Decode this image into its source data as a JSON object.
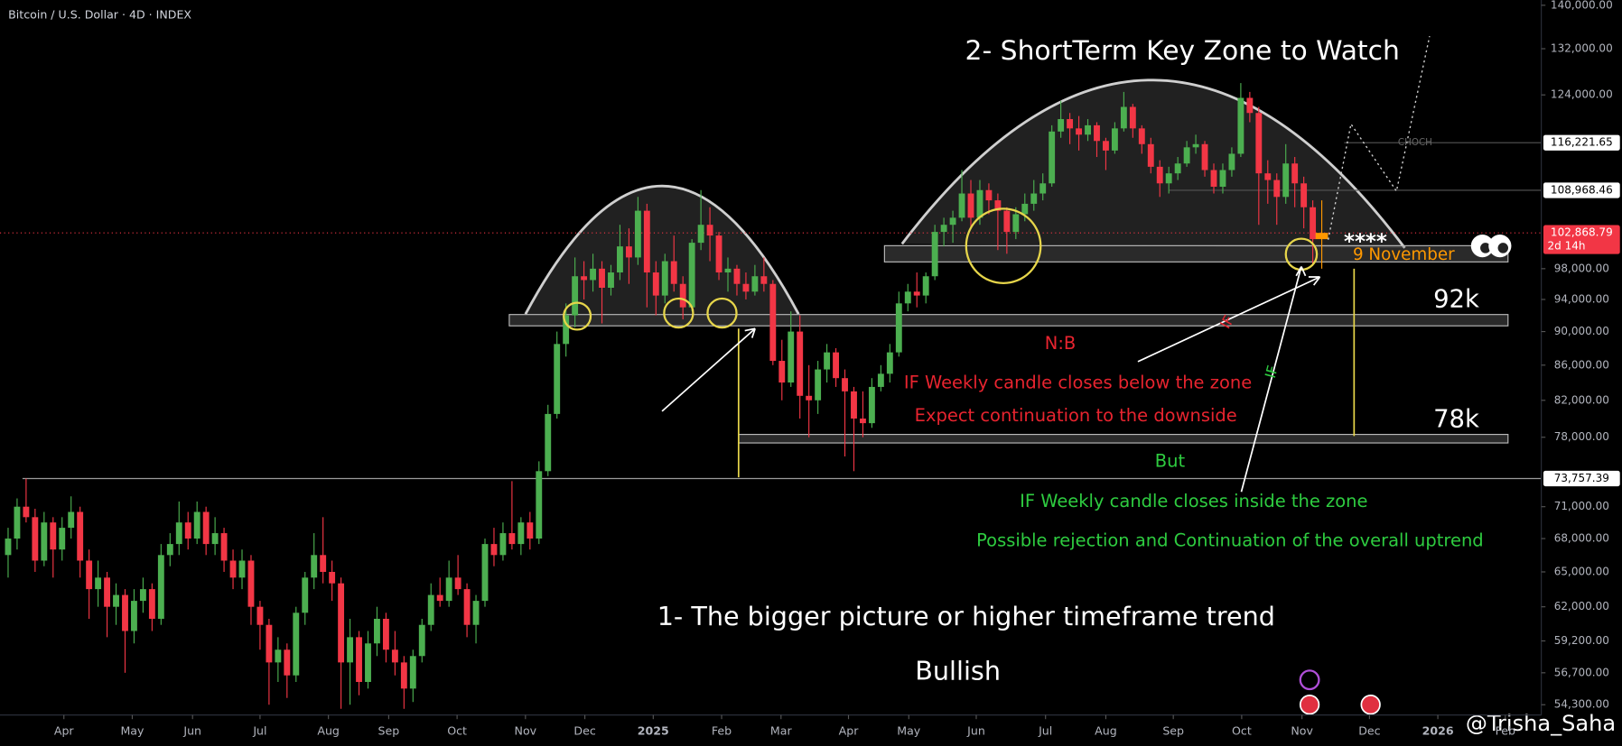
{
  "chart_data": {
    "type": "candlestick",
    "title": "Bitcoin / U.S. Dollar · 4D · INDEX",
    "log_scale": true,
    "grid": false,
    "up_color": "#4caf50",
    "down_color": "#f23645",
    "highlight_color": "#ff9800",
    "ylim": [
      53550,
      141000
    ],
    "xlim": [
      -0.9,
      170.4
    ],
    "yticks": [
      {
        "value": 140000,
        "label": "140,000.00"
      },
      {
        "value": 132000,
        "label": "132,000.00"
      },
      {
        "value": 124000,
        "label": "124,000.00"
      },
      {
        "value": 98000,
        "label": "98,000.00"
      },
      {
        "value": 94000,
        "label": "94,000.00"
      },
      {
        "value": 90000,
        "label": "90,000.00"
      },
      {
        "value": 86000,
        "label": "86,000.00"
      },
      {
        "value": 82000,
        "label": "82,000.00"
      },
      {
        "value": 78000,
        "label": "78,000.00"
      },
      {
        "value": 71000,
        "label": "71,000.00"
      },
      {
        "value": 68000,
        "label": "68,000.00"
      },
      {
        "value": 65000,
        "label": "65,000.00"
      },
      {
        "value": 62000,
        "label": "62,000.00"
      },
      {
        "value": 59200,
        "label": "59,200.00"
      },
      {
        "value": 56700,
        "label": "56,700.00"
      },
      {
        "value": 54300,
        "label": "54,300.00"
      }
    ],
    "xticks": [
      {
        "value": 6.2,
        "label": "Apr"
      },
      {
        "value": 13.8,
        "label": "May"
      },
      {
        "value": 20.5,
        "label": "Jun"
      },
      {
        "value": 28.0,
        "label": "Jul"
      },
      {
        "value": 35.6,
        "label": "Aug"
      },
      {
        "value": 42.3,
        "label": "Sep"
      },
      {
        "value": 49.9,
        "label": "Oct"
      },
      {
        "value": 57.5,
        "label": "Nov"
      },
      {
        "value": 64.1,
        "label": "Dec"
      },
      {
        "value": 71.7,
        "label": "2025"
      },
      {
        "value": 79.3,
        "label": "Feb"
      },
      {
        "value": 85.9,
        "label": "Mar"
      },
      {
        "value": 93.4,
        "label": "Apr"
      },
      {
        "value": 100.1,
        "label": "May"
      },
      {
        "value": 107.6,
        "label": "Jun"
      },
      {
        "value": 115.3,
        "label": "Jul"
      },
      {
        "value": 122.0,
        "label": "Aug"
      },
      {
        "value": 129.5,
        "label": "Sep"
      },
      {
        "value": 137.1,
        "label": "Oct"
      },
      {
        "value": 143.8,
        "label": "Nov"
      },
      {
        "value": 151.3,
        "label": "Dec"
      },
      {
        "value": 158.9,
        "label": "2026"
      },
      {
        "value": 166.4,
        "label": "Feb"
      }
    ],
    "ohlc": [
      [
        66500,
        69000,
        64500,
        68000
      ],
      [
        68000,
        71800,
        67000,
        71000
      ],
      [
        71000,
        73757.39,
        69500,
        70000
      ],
      [
        70000,
        70800,
        65000,
        66000
      ],
      [
        66000,
        70500,
        65500,
        69500
      ],
      [
        69500,
        70000,
        64500,
        67000
      ],
      [
        67000,
        70000,
        66000,
        69000
      ],
      [
        69000,
        72000,
        68000,
        70500
      ],
      [
        70500,
        71000,
        64500,
        66000
      ],
      [
        66000,
        67000,
        61000,
        63500
      ],
      [
        63500,
        66000,
        62000,
        64500
      ],
      [
        64500,
        65000,
        59500,
        62000
      ],
      [
        62000,
        64000,
        60500,
        63000
      ],
      [
        63000,
        63500,
        56700,
        60000
      ],
      [
        60000,
        63500,
        59000,
        62500
      ],
      [
        62500,
        64500,
        61500,
        63500
      ],
      [
        63500,
        64000,
        60000,
        61000
      ],
      [
        61000,
        67500,
        60500,
        66500
      ],
      [
        66500,
        68500,
        65500,
        67500
      ],
      [
        67500,
        71500,
        66500,
        69500
      ],
      [
        69500,
        70500,
        67000,
        68000
      ],
      [
        68000,
        71500,
        67500,
        70500
      ],
      [
        70500,
        71000,
        66500,
        67500
      ],
      [
        67500,
        70000,
        66500,
        68500
      ],
      [
        68500,
        69000,
        65000,
        66000
      ],
      [
        66000,
        67000,
        63500,
        64500
      ],
      [
        64500,
        67000,
        63500,
        66000
      ],
      [
        66000,
        66500,
        60500,
        62000
      ],
      [
        62000,
        62500,
        58500,
        60500
      ],
      [
        60500,
        61000,
        54300,
        57500
      ],
      [
        57500,
        59500,
        56000,
        58500
      ],
      [
        58500,
        59000,
        54800,
        56500
      ],
      [
        56500,
        62000,
        56000,
        61500
      ],
      [
        61500,
        65000,
        60500,
        64500
      ],
      [
        64500,
        68500,
        63500,
        66500
      ],
      [
        66500,
        70000,
        64000,
        65000
      ],
      [
        65000,
        66000,
        62500,
        64000
      ],
      [
        64000,
        64500,
        54000,
        57500
      ],
      [
        57500,
        61000,
        54300,
        59500
      ],
      [
        59500,
        60000,
        55000,
        56000
      ],
      [
        56000,
        60000,
        55500,
        59000
      ],
      [
        59000,
        62000,
        58000,
        61000
      ],
      [
        61000,
        61500,
        57500,
        58500
      ],
      [
        58500,
        60000,
        56500,
        57500
      ],
      [
        57500,
        58000,
        54000,
        55500
      ],
      [
        55500,
        58500,
        54500,
        58000
      ],
      [
        58000,
        61000,
        57500,
        60500
      ],
      [
        60500,
        64000,
        60000,
        63000
      ],
      [
        63000,
        64500,
        62000,
        62500
      ],
      [
        62500,
        66000,
        62000,
        64500
      ],
      [
        64500,
        66500,
        63000,
        63500
      ],
      [
        63500,
        64000,
        59500,
        60500
      ],
      [
        60500,
        63000,
        59000,
        62500
      ],
      [
        62500,
        68000,
        62000,
        67500
      ],
      [
        67500,
        69000,
        65500,
        66500
      ],
      [
        66500,
        69500,
        66000,
        68500
      ],
      [
        68500,
        73500,
        67000,
        67500
      ],
      [
        67500,
        70000,
        66500,
        69500
      ],
      [
        69500,
        70500,
        67000,
        68000
      ],
      [
        68000,
        75500,
        67500,
        74500
      ],
      [
        74500,
        81500,
        74000,
        80500
      ],
      [
        80500,
        90000,
        80000,
        88500
      ],
      [
        88500,
        93500,
        87000,
        92000
      ],
      [
        92000,
        99500,
        90500,
        97000
      ],
      [
        97000,
        99000,
        94000,
        96500
      ],
      [
        96500,
        100000,
        95000,
        98000
      ],
      [
        98000,
        99000,
        91000,
        95500
      ],
      [
        95500,
        98500,
        94500,
        97500
      ],
      [
        97500,
        104000,
        96500,
        101000
      ],
      [
        101000,
        103500,
        96000,
        99500
      ],
      [
        99500,
        108000,
        98500,
        106000
      ],
      [
        106000,
        107000,
        93000,
        97500
      ],
      [
        97500,
        99000,
        92000,
        94500
      ],
      [
        94500,
        100000,
        93500,
        99000
      ],
      [
        99000,
        102500,
        95000,
        96000
      ],
      [
        96000,
        97000,
        91500,
        93000
      ],
      [
        93000,
        102000,
        92500,
        101500
      ],
      [
        101500,
        109000,
        100500,
        104000
      ],
      [
        104000,
        106500,
        99000,
        102500
      ],
      [
        102500,
        103000,
        96500,
        97500
      ],
      [
        97500,
        99500,
        95000,
        98000
      ],
      [
        98000,
        98500,
        94500,
        96000
      ],
      [
        96000,
        97500,
        94000,
        95000
      ],
      [
        95000,
        98500,
        94500,
        97000
      ],
      [
        97000,
        99500,
        95000,
        96000
      ],
      [
        96000,
        96500,
        86000,
        86500
      ],
      [
        86500,
        89000,
        82000,
        84000
      ],
      [
        84000,
        92500,
        83500,
        90000
      ],
      [
        90000,
        92000,
        80000,
        82500
      ],
      [
        82500,
        86000,
        78000,
        82000
      ],
      [
        82000,
        86500,
        80500,
        85500
      ],
      [
        85500,
        88500,
        84000,
        87500
      ],
      [
        87500,
        88000,
        83500,
        84500
      ],
      [
        84500,
        85500,
        76000,
        83000
      ],
      [
        83000,
        83500,
        74500,
        80000
      ],
      [
        80000,
        83000,
        78000,
        79500
      ],
      [
        79500,
        84500,
        79000,
        83500
      ],
      [
        83500,
        86000,
        83000,
        85000
      ],
      [
        85000,
        88500,
        84000,
        87500
      ],
      [
        87500,
        95000,
        87000,
        93500
      ],
      [
        93500,
        96000,
        92500,
        95000
      ],
      [
        95000,
        97500,
        93000,
        94500
      ],
      [
        94500,
        97500,
        93500,
        97000
      ],
      [
        97000,
        104000,
        96500,
        103000
      ],
      [
        103000,
        105000,
        101000,
        104000
      ],
      [
        104000,
        106000,
        101500,
        105000
      ],
      [
        105000,
        112000,
        104500,
        108500
      ],
      [
        108500,
        110500,
        103500,
        105000
      ],
      [
        105000,
        110500,
        104000,
        109000
      ],
      [
        109000,
        110000,
        105500,
        107500
      ],
      [
        107500,
        108500,
        100500,
        106000
      ],
      [
        106000,
        106500,
        100000,
        103000
      ],
      [
        103000,
        106500,
        102000,
        105500
      ],
      [
        105500,
        108500,
        104500,
        107000
      ],
      [
        107000,
        110500,
        106000,
        108500
      ],
      [
        108500,
        111500,
        107500,
        110000
      ],
      [
        110000,
        119000,
        109500,
        118000
      ],
      [
        118000,
        123000,
        117000,
        120000
      ],
      [
        120000,
        121000,
        116000,
        118500
      ],
      [
        118500,
        120500,
        115000,
        117500
      ],
      [
        117500,
        120000,
        116500,
        119000
      ],
      [
        119000,
        119500,
        114000,
        116500
      ],
      [
        116500,
        117000,
        112000,
        115000
      ],
      [
        115000,
        119500,
        114500,
        118500
      ],
      [
        118500,
        124500,
        118000,
        122000
      ],
      [
        122000,
        122500,
        117000,
        118500
      ],
      [
        118500,
        119000,
        114500,
        116000
      ],
      [
        116000,
        117000,
        111500,
        112500
      ],
      [
        112500,
        113500,
        108000,
        110000
      ],
      [
        110000,
        112500,
        108500,
        111500
      ],
      [
        111500,
        114000,
        110500,
        113000
      ],
      [
        113000,
        116500,
        112500,
        115500
      ],
      [
        115500,
        117500,
        114500,
        116000
      ],
      [
        116000,
        116500,
        111000,
        112000
      ],
      [
        112000,
        113000,
        108500,
        109500
      ],
      [
        109500,
        113000,
        108500,
        112000
      ],
      [
        112000,
        115500,
        111000,
        114500
      ],
      [
        114500,
        126000,
        114000,
        123500
      ],
      [
        123500,
        124500,
        119500,
        121000
      ],
      [
        121000,
        122000,
        104000,
        111500
      ],
      [
        111500,
        113500,
        107000,
        110500
      ],
      [
        110500,
        111500,
        104000,
        108000
      ],
      [
        108000,
        116000,
        107000,
        113000
      ],
      [
        113000,
        114000,
        106500,
        110000
      ],
      [
        110000,
        111000,
        103500,
        106500
      ],
      [
        106500,
        107500,
        98500,
        102000
      ],
      [
        102000,
        107500,
        98000,
        102868.79
      ]
    ],
    "zones": [
      {
        "low": 98900,
        "high": 101100,
        "from": 97.4,
        "to": 166.7
      },
      {
        "low": 90700,
        "high": 92100,
        "from": 55.7,
        "to": 166.7,
        "label": "92k"
      },
      {
        "low": 77400,
        "high": 78300,
        "from": 81.2,
        "to": 166.7,
        "label": "78k"
      }
    ],
    "markers": [
      {
        "value": 116221.65,
        "label": "116,221.65",
        "from": 148.5,
        "color": "#ffffff",
        "line": "#555555"
      },
      {
        "value": 108968.46,
        "label": "108,968.46",
        "from": 129.0,
        "color": "#ffffff",
        "line": "#555555"
      },
      {
        "value": 102868.79,
        "label": "102,868.79",
        "from": -0.9,
        "color": "#f23645",
        "line": "#f23645",
        "countdown": "2d 14h"
      },
      {
        "value": 73757.39,
        "label": "73,757.39",
        "from": 1.6,
        "color": "#ffffff",
        "line": "#9a9a9a"
      }
    ],
    "annotations": {
      "zone_title": "2- ShortTerm Key Zone to Watch",
      "nb": "N:B",
      "below_1": "IF Weekly candle closes below the zone",
      "below_2": "Expect continuation to the downside",
      "but": "But",
      "inside_1": "IF Weekly candle closes inside the zone",
      "inside_2": "Possible rejection and Continuation of the overall uptrend",
      "big_picture": "1- The bigger picture or higher timeframe trend",
      "bullish": "Bullish",
      "date": "9 November",
      "stars": "****",
      "if_red": "IF",
      "if_green": "IF",
      "choch": "CHOCH",
      "author": "@Trisha_Saha"
    }
  }
}
